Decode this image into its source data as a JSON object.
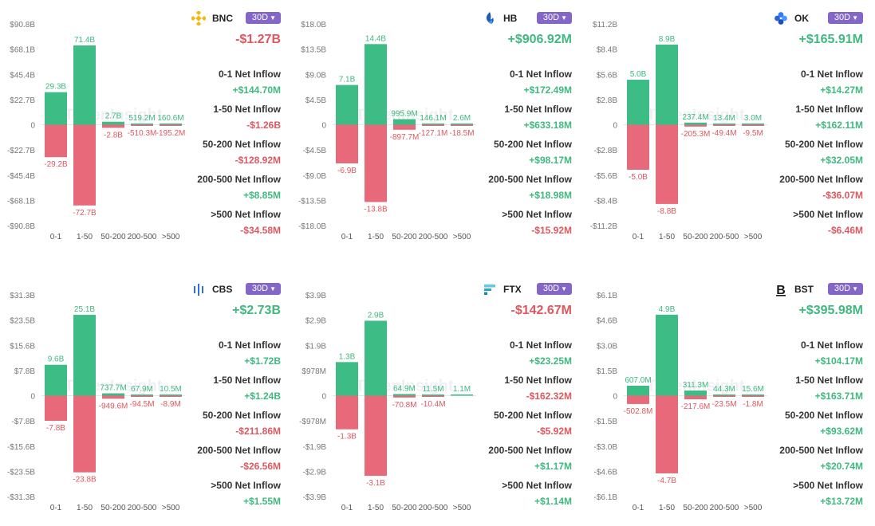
{
  "colors": {
    "positive": "#3dbd85",
    "negative": "#e8697a",
    "pos_text": "#3fb97f",
    "neg_text": "#e0575f",
    "badge": "#8366c7"
  },
  "categories": [
    "0-1",
    "1-50",
    "50-200",
    "200-500",
    ">500"
  ],
  "watermark": "TokenInsight",
  "row_labels": [
    "0-1 Net Inflow",
    "1-50 Net Inflow",
    "50-200 Net Inflow",
    "200-500 Net Inflow",
    ">500 Net Inflow"
  ],
  "panels": [
    {
      "exchange": "BNC",
      "icon": "binance-icon",
      "period": "30D",
      "total": "-$1.27B",
      "values": [
        "+$144.70M",
        "-$1.26B",
        "-$128.92M",
        "+$8.85M",
        "-$34.58M"
      ],
      "chart_data": {
        "type": "bar",
        "categories": [
          "0-1",
          "1-50",
          "50-200",
          "200-500",
          ">500"
        ],
        "ylim": [
          -90.8,
          90.8
        ],
        "yticks": [
          "$90.8B",
          "$68.1B",
          "$45.4B",
          "$22.7B",
          "0",
          "-$22.7B",
          "-$45.4B",
          "-$68.1B",
          "-$90.8B"
        ],
        "series": [
          {
            "values": [
              29.3,
              71.4,
              2.7,
              0.5192,
              0.1606
            ],
            "labels": [
              "29.3B",
              "71.4B",
              "2.7B",
              "519.2M",
              "160.6M"
            ]
          },
          {
            "values": [
              -29.2,
              -72.7,
              -2.8,
              -0.5103,
              -0.1952
            ],
            "labels": [
              "-29.2B",
              "-72.7B",
              "-2.8B",
              "-510.3M",
              "-195.2M"
            ]
          }
        ]
      }
    },
    {
      "exchange": "HB",
      "icon": "huobi-icon",
      "period": "30D",
      "total": "+$906.92M",
      "values": [
        "+$172.49M",
        "+$633.18M",
        "+$98.17M",
        "+$18.98M",
        "-$15.92M"
      ],
      "chart_data": {
        "type": "bar",
        "categories": [
          "0-1",
          "1-50",
          "50-200",
          "200-500",
          ">500"
        ],
        "ylim": [
          -18.0,
          18.0
        ],
        "yticks": [
          "$18.0B",
          "$13.5B",
          "$9.0B",
          "$4.5B",
          "0",
          "-$4.5B",
          "-$9.0B",
          "-$13.5B",
          "-$18.0B"
        ],
        "series": [
          {
            "values": [
              7.1,
              14.4,
              0.9959,
              0.1461,
              0.0026
            ],
            "labels": [
              "7.1B",
              "14.4B",
              "995.9M",
              "146.1M",
              "2.6M"
            ]
          },
          {
            "values": [
              -6.9,
              -13.8,
              -0.8977,
              -0.1271,
              -0.0185
            ],
            "labels": [
              "-6.9B",
              "-13.8B",
              "-897.7M",
              "-127.1M",
              "-18.5M"
            ]
          }
        ]
      }
    },
    {
      "exchange": "OK",
      "icon": "okx-icon",
      "period": "30D",
      "total": "+$165.91M",
      "values": [
        "+$14.27M",
        "+$162.11M",
        "+$32.05M",
        "-$36.07M",
        "-$6.46M"
      ],
      "chart_data": {
        "type": "bar",
        "categories": [
          "0-1",
          "1-50",
          "50-200",
          "200-500",
          ">500"
        ],
        "ylim": [
          -11.2,
          11.2
        ],
        "yticks": [
          "$11.2B",
          "$8.4B",
          "$5.6B",
          "$2.8B",
          "0",
          "-$2.8B",
          "-$5.6B",
          "-$8.4B",
          "-$11.2B"
        ],
        "series": [
          {
            "values": [
              5.0,
              8.9,
              0.2374,
              0.0134,
              0.003
            ],
            "labels": [
              "5.0B",
              "8.9B",
              "237.4M",
              "13.4M",
              "3.0M"
            ]
          },
          {
            "values": [
              -5.0,
              -8.8,
              -0.2053,
              -0.0494,
              -0.0095
            ],
            "labels": [
              "-5.0B",
              "-8.8B",
              "-205.3M",
              "-49.4M",
              "-9.5M"
            ]
          }
        ]
      }
    },
    {
      "exchange": "CBS",
      "icon": "coinbase-icon",
      "period": "30D",
      "total": "+$2.73B",
      "values": [
        "+$1.72B",
        "+$1.24B",
        "-$211.86M",
        "-$26.56M",
        "+$1.55M"
      ],
      "chart_data": {
        "type": "bar",
        "categories": [
          "0-1",
          "1-50",
          "50-200",
          "200-500",
          ">500"
        ],
        "ylim": [
          -31.3,
          31.3
        ],
        "yticks": [
          "$31.3B",
          "$23.5B",
          "$15.6B",
          "$7.8B",
          "0",
          "-$7.8B",
          "-$15.6B",
          "-$23.5B",
          "-$31.3B"
        ],
        "series": [
          {
            "values": [
              9.6,
              25.1,
              0.7377,
              0.0679,
              0.0105
            ],
            "labels": [
              "9.6B",
              "25.1B",
              "737.7M",
              "67.9M",
              "10.5M"
            ]
          },
          {
            "values": [
              -7.8,
              -23.8,
              -0.9496,
              -0.0945,
              -0.0089
            ],
            "labels": [
              "-7.8B",
              "-23.8B",
              "-949.6M",
              "-94.5M",
              "-8.9M"
            ]
          }
        ]
      }
    },
    {
      "exchange": "FTX",
      "icon": "ftx-icon",
      "period": "30D",
      "total": "-$142.67M",
      "values": [
        "+$23.25M",
        "-$162.32M",
        "-$5.92M",
        "+$1.17M",
        "+$1.14M"
      ],
      "chart_data": {
        "type": "bar",
        "categories": [
          "0-1",
          "1-50",
          "50-200",
          "200-500",
          ">500"
        ],
        "ylim": [
          -3.9,
          3.9
        ],
        "yticks": [
          "$3.9B",
          "$2.9B",
          "$1.9B",
          "$978M",
          "0",
          "-$978M",
          "-$1.9B",
          "-$2.9B",
          "-$3.9B"
        ],
        "series": [
          {
            "values": [
              1.3,
              2.9,
              0.0649,
              0.0115,
              0.0011
            ],
            "labels": [
              "1.3B",
              "2.9B",
              "64.9M",
              "11.5M",
              "1.1M"
            ]
          },
          {
            "values": [
              -1.3,
              -3.1,
              -0.0708,
              -0.0104,
              0
            ],
            "labels": [
              "-1.3B",
              "-3.1B",
              "-70.8M",
              "-10.4M",
              ""
            ]
          }
        ]
      }
    },
    {
      "exchange": "BST",
      "icon": "bitstamp-icon",
      "period": "30D",
      "total": "+$395.98M",
      "values": [
        "+$104.17M",
        "+$163.71M",
        "+$93.62M",
        "+$20.74M",
        "+$13.72M"
      ],
      "chart_data": {
        "type": "bar",
        "categories": [
          "0-1",
          "1-50",
          "50-200",
          "200-500",
          ">500"
        ],
        "ylim": [
          -6.1,
          6.1
        ],
        "yticks": [
          "$6.1B",
          "$4.6B",
          "$3.0B",
          "$1.5B",
          "0",
          "-$1.5B",
          "-$3.0B",
          "-$4.6B",
          "-$6.1B"
        ],
        "series": [
          {
            "values": [
              0.607,
              4.9,
              0.3113,
              0.0443,
              0.0156
            ],
            "labels": [
              "607.0M",
              "4.9B",
              "311.3M",
              "44.3M",
              "15.6M"
            ]
          },
          {
            "values": [
              -0.5028,
              -4.7,
              -0.2176,
              -0.0235,
              -0.0018
            ],
            "labels": [
              "-502.8M",
              "-4.7B",
              "-217.6M",
              "-23.5M",
              "-1.8M"
            ]
          }
        ]
      }
    }
  ]
}
